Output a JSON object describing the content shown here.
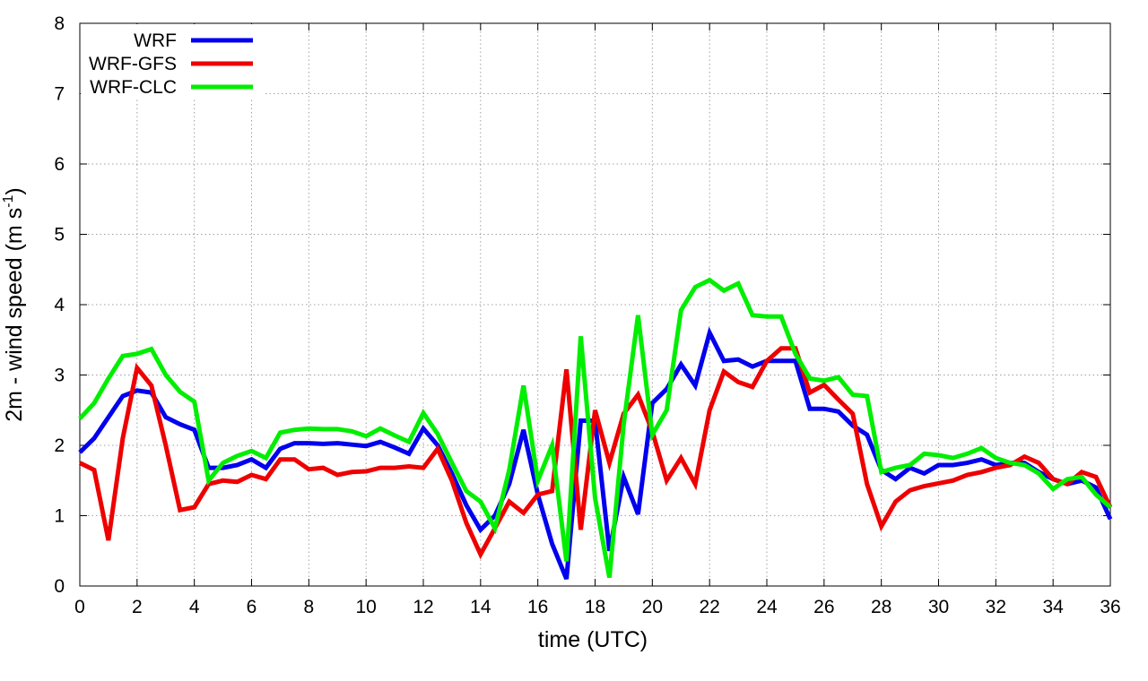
{
  "chart_data": {
    "type": "line",
    "title": "",
    "xlabel": "time (UTC)",
    "ylabel_prefix": "2m - wind speed  (m s",
    "ylabel_sup": "-1",
    "ylabel_suffix": ")",
    "xlim": [
      0,
      36
    ],
    "ylim": [
      0,
      8
    ],
    "xticks": [
      0,
      2,
      4,
      6,
      8,
      10,
      12,
      14,
      16,
      18,
      20,
      22,
      24,
      26,
      28,
      30,
      32,
      34,
      36
    ],
    "yticks": [
      0,
      1,
      2,
      3,
      4,
      5,
      6,
      7,
      8
    ],
    "grid": true,
    "legend_position": "top-left",
    "x": [
      0,
      0.5,
      1,
      1.5,
      2,
      2.5,
      3,
      3.5,
      4,
      4.5,
      5,
      5.5,
      6,
      6.5,
      7,
      7.5,
      8,
      8.5,
      9,
      9.5,
      10,
      10.5,
      11,
      11.5,
      12,
      12.5,
      13,
      13.5,
      14,
      14.5,
      15,
      15.5,
      16,
      16.5,
      17,
      17.5,
      18,
      18.5,
      19,
      19.5,
      20,
      20.5,
      21,
      21.5,
      22,
      22.5,
      23,
      23.5,
      24,
      24.5,
      25,
      25.5,
      26,
      26.5,
      27,
      27.5,
      28,
      28.5,
      29,
      29.5,
      30,
      30.5,
      31,
      31.5,
      32,
      32.5,
      33,
      33.5,
      34,
      34.5,
      35,
      35.5,
      36
    ],
    "series": [
      {
        "name": "WRF",
        "color": "#0000ee",
        "values": [
          1.9,
          2.1,
          2.4,
          2.7,
          2.78,
          2.75,
          2.4,
          2.3,
          2.22,
          1.68,
          1.68,
          1.72,
          1.8,
          1.68,
          1.95,
          2.03,
          2.03,
          2.02,
          2.03,
          2.01,
          1.99,
          2.05,
          1.97,
          1.88,
          2.24,
          2.0,
          1.6,
          1.15,
          0.8,
          1.0,
          1.45,
          2.22,
          1.3,
          0.6,
          0.1,
          2.35,
          2.35,
          0.5,
          1.55,
          1.02,
          2.6,
          2.8,
          3.15,
          2.85,
          3.6,
          3.2,
          3.22,
          3.12,
          3.2,
          3.2,
          3.2,
          2.52,
          2.52,
          2.48,
          2.28,
          2.15,
          1.65,
          1.52,
          1.68,
          1.6,
          1.72,
          1.72,
          1.75,
          1.8,
          1.72,
          1.75,
          1.75,
          1.62,
          1.52,
          1.45,
          1.5,
          1.4,
          0.95
        ]
      },
      {
        "name": "WRF-GFS",
        "color": "#ee0000",
        "values": [
          1.75,
          1.65,
          0.65,
          2.1,
          3.1,
          2.85,
          2.0,
          1.08,
          1.12,
          1.45,
          1.5,
          1.48,
          1.58,
          1.52,
          1.8,
          1.8,
          1.66,
          1.68,
          1.58,
          1.62,
          1.63,
          1.68,
          1.68,
          1.7,
          1.68,
          1.95,
          1.5,
          0.9,
          0.45,
          0.82,
          1.2,
          1.04,
          1.3,
          1.35,
          3.08,
          0.8,
          2.5,
          1.75,
          2.45,
          2.72,
          2.2,
          1.5,
          1.82,
          1.45,
          2.5,
          3.05,
          2.9,
          2.83,
          3.2,
          3.38,
          3.38,
          2.75,
          2.86,
          2.65,
          2.45,
          1.45,
          0.85,
          1.2,
          1.36,
          1.42,
          1.46,
          1.5,
          1.58,
          1.62,
          1.68,
          1.72,
          1.84,
          1.75,
          1.52,
          1.45,
          1.62,
          1.55,
          1.12
        ]
      },
      {
        "name": "WRF-CLC",
        "color": "#00ee00",
        "values": [
          2.38,
          2.6,
          2.95,
          3.27,
          3.3,
          3.37,
          3.0,
          2.76,
          2.62,
          1.5,
          1.75,
          1.85,
          1.92,
          1.82,
          2.18,
          2.22,
          2.24,
          2.23,
          2.23,
          2.2,
          2.13,
          2.24,
          2.14,
          2.05,
          2.46,
          2.16,
          1.75,
          1.35,
          1.2,
          0.82,
          1.65,
          2.85,
          1.5,
          2.0,
          0.35,
          3.55,
          1.25,
          0.12,
          2.3,
          3.85,
          2.15,
          2.5,
          3.92,
          4.25,
          4.35,
          4.2,
          4.3,
          3.85,
          3.83,
          3.83,
          3.3,
          2.95,
          2.92,
          2.97,
          2.72,
          2.7,
          1.62,
          1.68,
          1.72,
          1.88,
          1.86,
          1.82,
          1.88,
          1.96,
          1.82,
          1.75,
          1.72,
          1.6,
          1.38,
          1.52,
          1.55,
          1.3,
          1.12
        ]
      }
    ]
  }
}
